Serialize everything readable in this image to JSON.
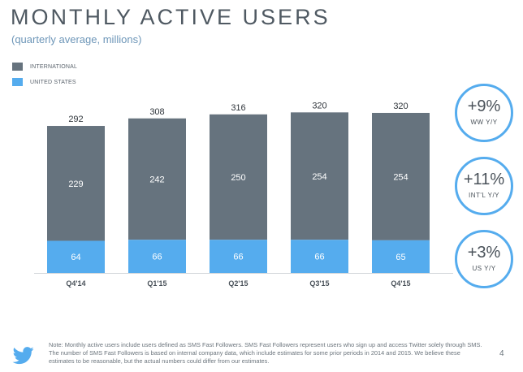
{
  "header": {
    "title": "MONTHLY ACTIVE USERS",
    "subtitle": "(quarterly average, millions)"
  },
  "legend": [
    {
      "label": "INTERNATIONAL",
      "color": "#66737e"
    },
    {
      "label": "UNITED STATES",
      "color": "#55acee"
    }
  ],
  "chart_data": {
    "type": "bar",
    "stacked": true,
    "title": "MONTHLY ACTIVE USERS",
    "subtitle": "(quarterly average, millions)",
    "categories": [
      "Q4'14",
      "Q1'15",
      "Q2'15",
      "Q3'15",
      "Q4'15"
    ],
    "series": [
      {
        "name": "UNITED STATES",
        "color": "#55acee",
        "values": [
          64,
          66,
          66,
          66,
          65
        ]
      },
      {
        "name": "INTERNATIONAL",
        "color": "#66737e",
        "values": [
          229,
          242,
          250,
          254,
          254
        ]
      }
    ],
    "totals": [
      292,
      308,
      316,
      320,
      320
    ],
    "ylim": [
      0,
      340
    ],
    "grid": false,
    "legend_position": "top-left"
  },
  "growth": [
    {
      "value": "+9%",
      "label": "WW Y/Y"
    },
    {
      "value": "+11%",
      "label": "INT'L Y/Y"
    },
    {
      "value": "+3%",
      "label": "US Y/Y"
    }
  ],
  "footer": {
    "note": "Note: Monthly active users include users defined as SMS Fast Followers. SMS Fast Followers represent users who sign up and access Twitter solely through SMS. The number of SMS Fast Followers is based on internal company data, which include estimates for some prior periods in 2014 and 2015. We believe these estimates to be reasonable, but the actual numbers could differ from our estimates.",
    "page_number": "4",
    "logo_icon": "twitter-bird-icon"
  }
}
